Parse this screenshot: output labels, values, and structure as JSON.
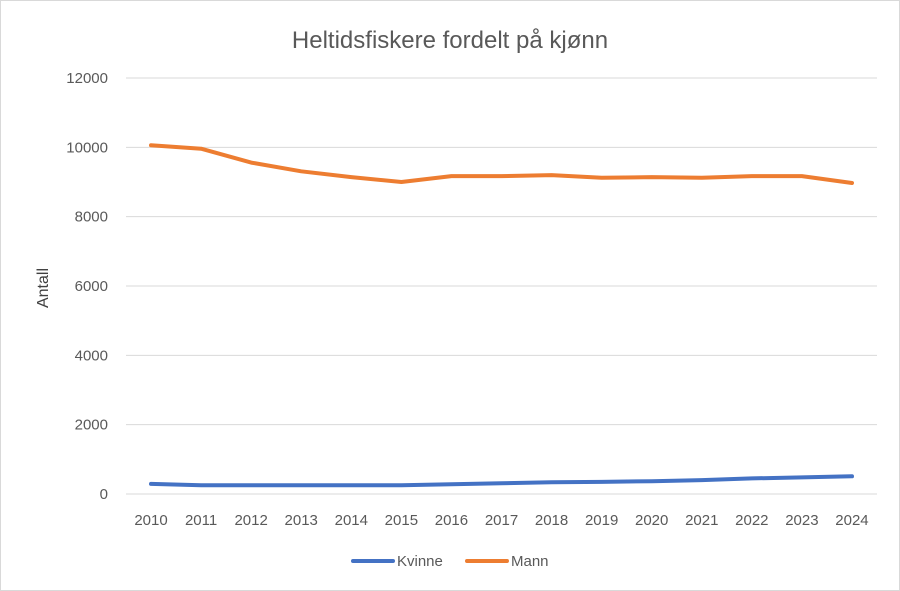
{
  "chart_data": {
    "type": "line",
    "title": "Heltidsfiskere fordelt på kjønn",
    "xlabel": "",
    "ylabel": "Antall",
    "categories": [
      "2010",
      "2011",
      "2012",
      "2013",
      "2014",
      "2015",
      "2016",
      "2017",
      "2018",
      "2019",
      "2020",
      "2021",
      "2022",
      "2023",
      "2024"
    ],
    "ylim": [
      0,
      12000
    ],
    "yticks": [
      "0",
      "2000",
      "4000",
      "6000",
      "8000",
      "10000",
      "12000"
    ],
    "grid": true,
    "legend_position": "bottom",
    "series": [
      {
        "name": "Kvinne",
        "color": "#4472c4",
        "values": [
          290,
          250,
          250,
          250,
          250,
          250,
          280,
          310,
          340,
          350,
          370,
          400,
          450,
          480,
          510
        ]
      },
      {
        "name": "Mann",
        "color": "#ed7d31",
        "values": [
          10060,
          9960,
          9560,
          9310,
          9140,
          9000,
          9170,
          9170,
          9200,
          9120,
          9140,
          9120,
          9170,
          9170,
          8970
        ]
      }
    ]
  }
}
